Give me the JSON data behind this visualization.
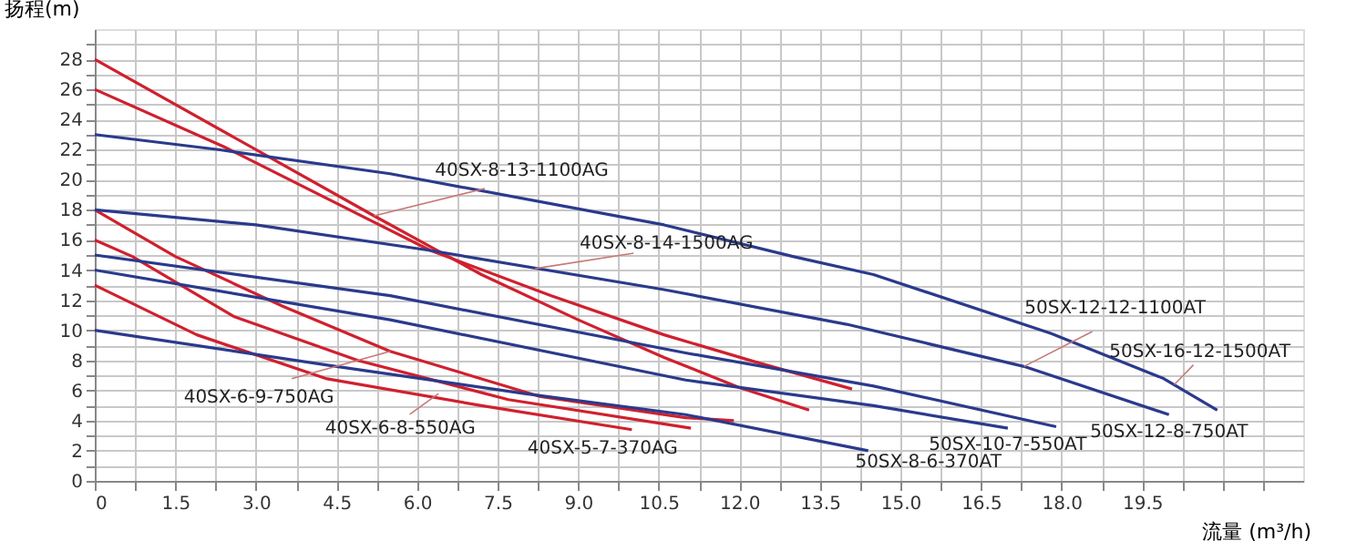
{
  "chart_data": {
    "type": "line",
    "xlabel": "流量 (m³/h)",
    "ylabel": "扬程(m)",
    "xlim": [
      0,
      22.5
    ],
    "ylim": [
      0,
      30
    ],
    "xticks": [
      0,
      {
        "value": 0.75,
        "label": null
      },
      1.5,
      {
        "value": 2.25,
        "label": null
      },
      {
        "value": 3,
        "label": "3.0"
      },
      {
        "value": 3.75,
        "label": null
      },
      4.5,
      {
        "value": 5.25,
        "label": null
      },
      {
        "value": 6,
        "label": "6.0"
      },
      {
        "value": 6.75,
        "label": null
      },
      7.5,
      {
        "value": 8.25,
        "label": null
      },
      {
        "value": 9,
        "label": "9.0"
      },
      {
        "value": 9.75,
        "label": null
      },
      10.5,
      {
        "value": 11.25,
        "label": null
      },
      {
        "value": 12,
        "label": "12.0"
      },
      {
        "value": 12.75,
        "label": null
      },
      13.5,
      {
        "value": 14.25,
        "label": null
      },
      {
        "value": 15,
        "label": "15.0"
      },
      {
        "value": 15.75,
        "label": null
      },
      16.5,
      {
        "value": 17.25,
        "label": null
      },
      {
        "value": 18,
        "label": "18.0"
      },
      {
        "value": 18.75,
        "label": null
      },
      19.5,
      {
        "value": 20.25,
        "label": null
      },
      {
        "value": 21,
        "label": null
      },
      {
        "value": 21.75,
        "label": null
      }
    ],
    "yticks": [
      0,
      {
        "value": 1,
        "label": null
      },
      2,
      {
        "value": 3,
        "label": null
      },
      4,
      {
        "value": 5,
        "label": null
      },
      6,
      {
        "value": 7,
        "label": null
      },
      8,
      {
        "value": 9,
        "label": null
      },
      10,
      {
        "value": 11,
        "label": null
      },
      12,
      {
        "value": 13,
        "label": null
      },
      14,
      {
        "value": 15,
        "label": null
      },
      16,
      {
        "value": 17,
        "label": null
      },
      18,
      {
        "value": 19,
        "label": null
      },
      20,
      {
        "value": 21,
        "label": null
      },
      22,
      {
        "value": 23,
        "label": null
      },
      24,
      {
        "value": 25,
        "label": null
      },
      26,
      {
        "value": 27,
        "label": null
      },
      28,
      {
        "value": 29,
        "label": null
      }
    ],
    "grid": true,
    "marker": "none",
    "line_style": "solid",
    "series": [
      {
        "color": "#d0202e",
        "x": [
          0,
          3.2,
          5.2,
          7.2,
          9,
          10.6,
          12,
          13.3
        ],
        "values": [
          28,
          21.6,
          17.6,
          13.7,
          10.7,
          8.2,
          6.2,
          4.7
        ]
      },
      {
        "color": "#d0202e",
        "x": [
          0,
          2.4,
          6.25,
          8.5,
          10.6,
          12.3,
          14.1
        ],
        "values": [
          26,
          22.2,
          15.3,
          12.3,
          9.7,
          7.9,
          6.1
        ]
      },
      {
        "color": "#d0202e",
        "x": [
          0,
          1.5,
          3.5,
          5.5,
          8.3,
          11,
          11.9
        ],
        "values": [
          18,
          14.9,
          11.6,
          8.6,
          5.6,
          4.2,
          4.0
        ]
      },
      {
        "color": "#d0202e",
        "x": [
          0,
          0.7,
          2.6,
          4.9,
          7.7,
          11.1
        ],
        "values": [
          16,
          14.9,
          10.9,
          8.0,
          5.4,
          3.5
        ]
      },
      {
        "color": "#d0202e",
        "x": [
          0,
          1.9,
          4.3,
          7.2,
          10.0
        ],
        "values": [
          13,
          9.7,
          6.8,
          5.0,
          3.4
        ]
      },
      {
        "color": "#2a3a8c",
        "x": [
          0,
          2.3,
          5.5,
          10.6,
          13,
          14.5,
          17.8,
          19.9,
          20.9
        ],
        "values": [
          23,
          22,
          20.4,
          17.0,
          14.9,
          13.7,
          9.8,
          6.8,
          4.7
        ]
      },
      {
        "color": "#2a3a8c",
        "x": [
          0,
          3,
          6.25,
          10.6,
          14,
          17.3,
          20
        ],
        "values": [
          18,
          17,
          15.3,
          12.7,
          10.4,
          7.6,
          4.4
        ]
      },
      {
        "color": "#2a3a8c",
        "x": [
          0,
          5.5,
          11,
          14.5,
          17.9
        ],
        "values": [
          15,
          12.3,
          8.5,
          6.3,
          3.6
        ]
      },
      {
        "color": "#2a3a8c",
        "x": [
          0,
          5.5,
          11,
          14.5,
          17
        ],
        "values": [
          14,
          10.7,
          6.7,
          5.0,
          3.5
        ]
      },
      {
        "color": "#2a3a8c",
        "x": [
          0,
          4.5,
          8,
          11,
          14.4
        ],
        "values": [
          10,
          7.6,
          5.8,
          4.4,
          2.0
        ]
      }
    ],
    "annotations": [
      {
        "text": "40SX-8-13-1100AG",
        "x": 5.2,
        "y": 17.6
      },
      {
        "text": "40SX-8-14-1500AG",
        "x": 8.2,
        "y": 14.1
      },
      {
        "text": "40SX-6-9-750AG",
        "x": 5.5,
        "y": 8.6
      },
      {
        "text": "40SX-6-8-550AG",
        "x": 6.4,
        "y": 5.8
      },
      {
        "text": "40SX-5-7-370AG",
        "x": 10.0,
        "y": 3.4
      },
      {
        "text": "50SX-12-12-1100AT",
        "x": 17.3,
        "y": 7.6
      },
      {
        "text": "50SX-16-12-1500AT",
        "x": 20.1,
        "y": 6.4
      },
      {
        "text": "50SX-12-8-750AT",
        "x": 17.9,
        "y": 3.6
      },
      {
        "text": "50SX-10-7-550AT",
        "x": 17.0,
        "y": 3.5
      },
      {
        "text": "50SX-8-6-370AT",
        "x": 14.4,
        "y": 2.0
      }
    ]
  }
}
